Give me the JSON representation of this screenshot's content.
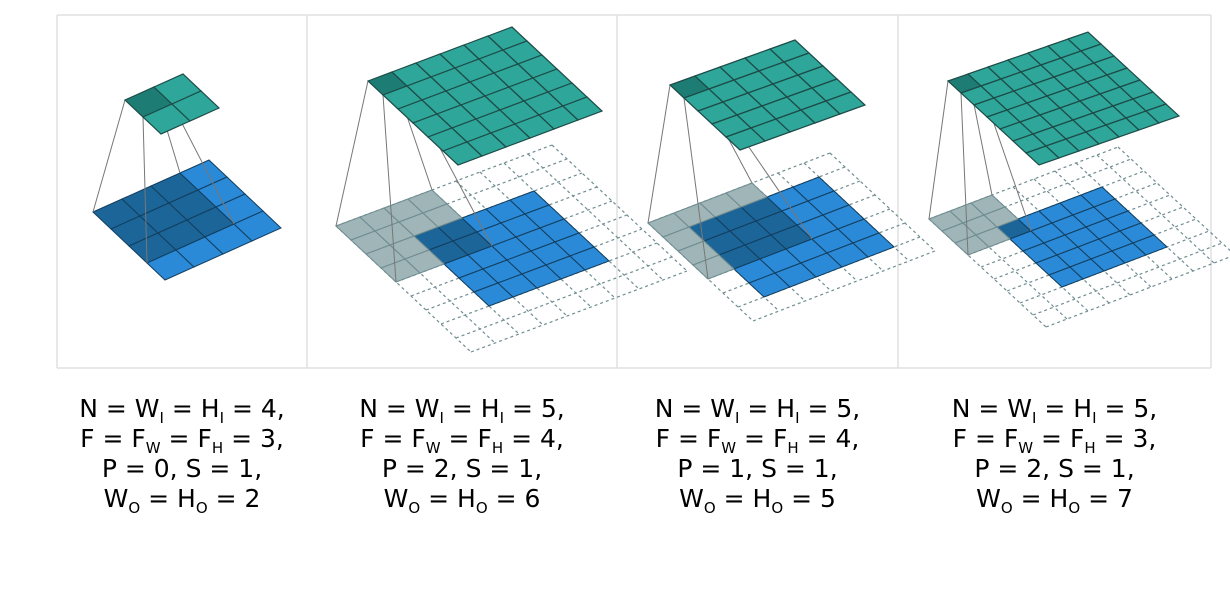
{
  "colors": {
    "output": "#2ea69a",
    "output_edge": "#1d4c48",
    "output_active": "#1d7d74",
    "input": "#2b8ad8",
    "input_edge": "#123f60",
    "input_active": "#1c6598",
    "kernel_shadow": "#8fa8aa",
    "padding_edge": "#6f8d92",
    "frame": "#e0e0e0"
  },
  "panels": [
    {
      "name": "panel-1",
      "input_size": 4,
      "kernel": 3,
      "padding": 0,
      "stride": 1,
      "output_size": 2,
      "caption": [
        {
          "a": "N = W",
          "s1": "I",
          "b": " = H",
          "s2": "I",
          "c": " = 4,"
        },
        {
          "a": "F = F",
          "s1": "W",
          "b": " = F",
          "s2": "H",
          "c": " = 3,"
        },
        {
          "a": "P = 0, S = 1,",
          "s1": "",
          "b": "",
          "s2": "",
          "c": ""
        },
        {
          "a": "W",
          "s1": "O",
          "b": " = H",
          "s2": "O",
          "c": " = 2"
        }
      ]
    },
    {
      "name": "panel-2",
      "input_size": 5,
      "kernel": 4,
      "padding": 2,
      "stride": 1,
      "output_size": 6,
      "caption": [
        {
          "a": "N = W",
          "s1": "I",
          "b": " = H",
          "s2": "I",
          "c": " = 5,"
        },
        {
          "a": "F = F",
          "s1": "W",
          "b": " = F",
          "s2": "H",
          "c": " = 4,"
        },
        {
          "a": "P = 2, S = 1,",
          "s1": "",
          "b": "",
          "s2": "",
          "c": ""
        },
        {
          "a": "W",
          "s1": "O",
          "b": " = H",
          "s2": "O",
          "c": " = 6"
        }
      ]
    },
    {
      "name": "panel-3",
      "input_size": 5,
      "kernel": 4,
      "padding": 1,
      "stride": 1,
      "output_size": 5,
      "caption": [
        {
          "a": "N = W",
          "s1": "I",
          "b": " = H",
          "s2": "I",
          "c": " = 5,"
        },
        {
          "a": "F = F",
          "s1": "W",
          "b": " = F",
          "s2": "H",
          "c": " = 4,"
        },
        {
          "a": "P = 1, S = 1,",
          "s1": "",
          "b": "",
          "s2": "",
          "c": ""
        },
        {
          "a": "W",
          "s1": "O",
          "b": " = H",
          "s2": "O",
          "c": " = 5"
        }
      ]
    },
    {
      "name": "panel-4",
      "input_size": 5,
      "kernel": 3,
      "padding": 2,
      "stride": 1,
      "output_size": 7,
      "caption": [
        {
          "a": "N = W",
          "s1": "I",
          "b": " = H",
          "s2": "I",
          "c": " = 5,"
        },
        {
          "a": "F = F",
          "s1": "W",
          "b": " = F",
          "s2": "H",
          "c": " = 3,"
        },
        {
          "a": "P = 2, S = 1,",
          "s1": "",
          "b": "",
          "s2": "",
          "c": ""
        },
        {
          "a": "W",
          "s1": "O",
          "b": " = H",
          "s2": "O",
          "c": " = 7"
        }
      ]
    }
  ]
}
